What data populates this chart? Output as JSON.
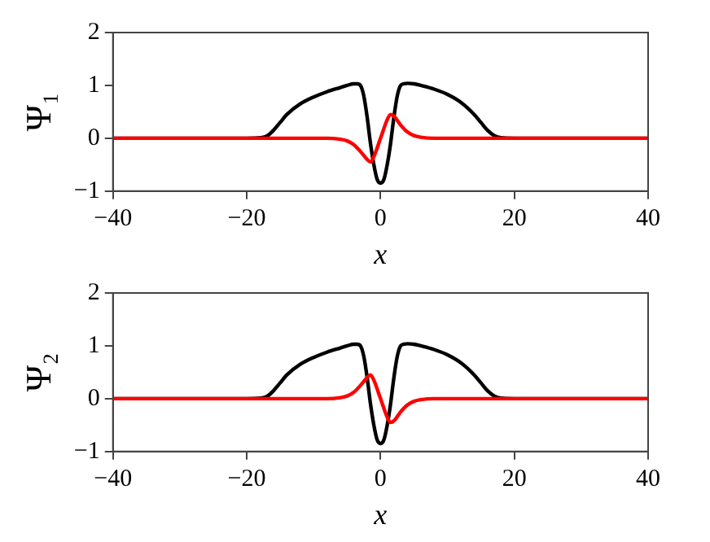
{
  "chart_data": [
    {
      "type": "line",
      "ylabel": "Ψ₁",
      "xlabel": "x",
      "xlim": [
        -40,
        40
      ],
      "xticks": [
        -40,
        -20,
        0,
        20,
        40
      ],
      "ylim": [
        -1,
        2
      ],
      "yticks": [
        -1,
        0,
        1,
        2
      ],
      "grid": false,
      "legend": false,
      "marker": "none",
      "line_style": "solid",
      "series": [
        {
          "color": "#000000",
          "x": [
            -40,
            -20,
            -18,
            -17,
            -16,
            -15,
            -14,
            -12,
            -10,
            -8,
            -6,
            -5,
            -4,
            -3.5,
            -3,
            -2.5,
            -2,
            -1.5,
            -1,
            -0.5,
            0,
            0.5,
            1,
            1.5,
            2,
            2.5,
            3,
            3.5,
            4,
            5,
            6,
            8,
            10,
            12,
            14,
            15,
            16,
            17,
            18,
            20,
            40
          ],
          "values": [
            0,
            0,
            0.01,
            0.04,
            0.15,
            0.3,
            0.45,
            0.65,
            0.78,
            0.88,
            0.96,
            1.0,
            1.03,
            1.03,
            1.0,
            0.8,
            0.4,
            -0.1,
            -0.5,
            -0.78,
            -0.85,
            -0.78,
            -0.5,
            -0.1,
            0.4,
            0.8,
            1.0,
            1.03,
            1.04,
            1.03,
            1.0,
            0.93,
            0.83,
            0.68,
            0.45,
            0.3,
            0.15,
            0.05,
            0.01,
            0,
            0
          ]
        },
        {
          "color": "#ff0000",
          "x": [
            -40,
            -8,
            -6,
            -5,
            -4,
            -3,
            -2,
            -1.5,
            -1,
            0,
            1,
            1.5,
            2,
            3,
            4,
            5,
            6,
            8,
            40
          ],
          "values": [
            0,
            0,
            -0.02,
            -0.05,
            -0.12,
            -0.25,
            -0.4,
            -0.45,
            -0.35,
            0,
            0.35,
            0.45,
            0.42,
            0.25,
            0.12,
            0.05,
            0.02,
            0,
            0
          ]
        }
      ]
    },
    {
      "type": "line",
      "ylabel": "Ψ₂",
      "xlabel": "x",
      "xlim": [
        -40,
        40
      ],
      "xticks": [
        -40,
        -20,
        0,
        20,
        40
      ],
      "ylim": [
        -1,
        2
      ],
      "yticks": [
        -1,
        0,
        1,
        2
      ],
      "grid": false,
      "legend": false,
      "marker": "none",
      "line_style": "solid",
      "series": [
        {
          "color": "#000000",
          "x": [
            -40,
            -20,
            -18,
            -17,
            -16,
            -15,
            -14,
            -12,
            -10,
            -8,
            -6,
            -5,
            -4,
            -3.5,
            -3,
            -2.5,
            -2,
            -1.5,
            -1,
            -0.5,
            0,
            0.5,
            1,
            1.5,
            2,
            2.5,
            3,
            3.5,
            4,
            5,
            6,
            8,
            10,
            12,
            14,
            15,
            16,
            17,
            18,
            20,
            40
          ],
          "values": [
            0,
            0,
            0.01,
            0.04,
            0.15,
            0.3,
            0.45,
            0.65,
            0.78,
            0.88,
            0.96,
            1.0,
            1.03,
            1.03,
            1.0,
            0.8,
            0.4,
            -0.1,
            -0.5,
            -0.78,
            -0.85,
            -0.78,
            -0.5,
            -0.1,
            0.4,
            0.8,
            1.0,
            1.03,
            1.04,
            1.03,
            1.0,
            0.93,
            0.83,
            0.68,
            0.45,
            0.3,
            0.15,
            0.05,
            0.01,
            0,
            0
          ]
        },
        {
          "color": "#ff0000",
          "x": [
            -40,
            -8,
            -6,
            -5,
            -4,
            -3,
            -2,
            -1.5,
            -1,
            0,
            1,
            1.5,
            2,
            3,
            4,
            5,
            6,
            8,
            40
          ],
          "values": [
            0,
            0,
            0.02,
            0.05,
            0.12,
            0.25,
            0.4,
            0.45,
            0.35,
            0,
            -0.35,
            -0.45,
            -0.42,
            -0.25,
            -0.12,
            -0.05,
            -0.02,
            0,
            0
          ]
        }
      ]
    }
  ]
}
